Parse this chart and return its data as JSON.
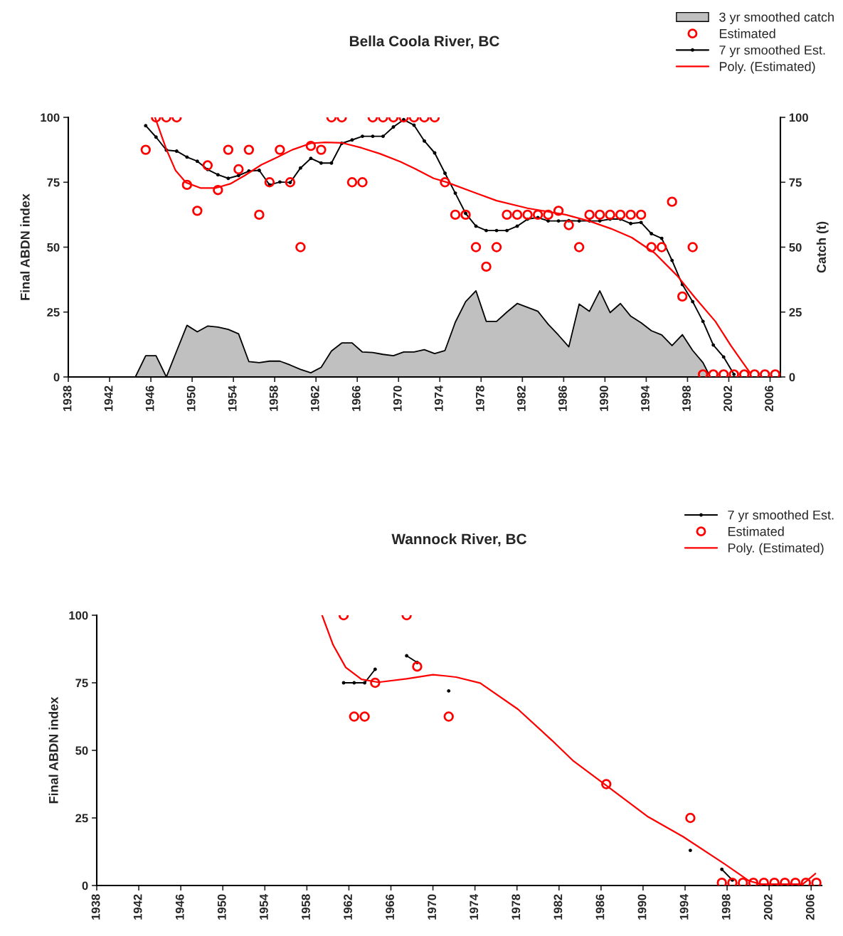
{
  "chart_data": [
    {
      "type": "line",
      "title": "Bella Coola River, BC",
      "ylabel": "Final ABDN index",
      "y2label": "Catch (t)",
      "xlim": [
        1938,
        2007
      ],
      "xticks": [
        1938,
        1942,
        1946,
        1950,
        1954,
        1958,
        1962,
        1966,
        1970,
        1974,
        1978,
        1982,
        1986,
        1990,
        1994,
        1998,
        2002,
        2006
      ],
      "ylim": [
        0,
        100
      ],
      "yticks": [
        0,
        25,
        50,
        75,
        100
      ],
      "y2lim": [
        0,
        100
      ],
      "y2ticks": [
        0,
        25,
        50,
        75,
        100
      ],
      "grid": false,
      "legend": "top right",
      "series": [
        {
          "name": "3 yr smoothed catch",
          "type": "area",
          "axis": "y2",
          "color": "#c0c0c0",
          "x": [
            1938.5,
            1939.5,
            1940.5,
            1941.5,
            1942.5,
            1943.5,
            1944.5,
            1945.5,
            1946.5,
            1947.5,
            1948.5,
            1949.5,
            1950.5,
            1951.5,
            1952.5,
            1953.5,
            1954.5,
            1955.5,
            1956.5,
            1957.5,
            1958.5,
            1959.5,
            1960.5,
            1961.5,
            1962.5,
            1963.5,
            1964.5,
            1965.5,
            1966.5,
            1967.5,
            1968.5,
            1969.5,
            1970.5,
            1971.5,
            1972.5,
            1973.5,
            1974.5,
            1975.5,
            1976.5,
            1977.5,
            1978.5,
            1979.5,
            1980.5,
            1981.5,
            1982.5,
            1983.5,
            1984.5,
            1985.5,
            1986.5,
            1987.5,
            1988.5,
            1989.5,
            1990.5,
            1991.5,
            1992.5,
            1993.5,
            1994.5,
            1995.5,
            1996.5,
            1997.5,
            1998.5,
            1999.5,
            2000.2
          ],
          "values": [
            0,
            0,
            0,
            0,
            0,
            0,
            0,
            8.2,
            8.2,
            0,
            10,
            19.9,
            17.4,
            19.6,
            19.2,
            18.3,
            16.6,
            5.9,
            5.5,
            6.1,
            6.1,
            4.6,
            2.9,
            1.6,
            3.7,
            10,
            13.1,
            13.1,
            9.6,
            9.4,
            8.7,
            8.2,
            9.6,
            9.6,
            10.5,
            9,
            10.2,
            21.1,
            29,
            33.2,
            21.4,
            21.4,
            25,
            28.3,
            26.8,
            25.3,
            20.3,
            16.1,
            11.6,
            28.1,
            25.3,
            33.2,
            24.8,
            28.3,
            23.4,
            20.9,
            17.8,
            16.2,
            12.1,
            16.3,
            10.2,
            5.5,
            0
          ]
        },
        {
          "name": "Estimated",
          "type": "scatter",
          "marker": "circle",
          "color": "#ff0000",
          "x": [
            1945.5,
            1946.5,
            1947.5,
            1948.5,
            1949.5,
            1950.5,
            1951.5,
            1952.5,
            1953.5,
            1954.5,
            1955.5,
            1956.5,
            1957.5,
            1958.5,
            1959.5,
            1960.5,
            1961.5,
            1962.5,
            1963.5,
            1964.5,
            1965.5,
            1966.5,
            1967.5,
            1968.5,
            1969.5,
            1970.5,
            1971.5,
            1972.5,
            1973.5,
            1974.5,
            1975.5,
            1976.5,
            1977.5,
            1978.5,
            1979.5,
            1980.5,
            1981.5,
            1982.5,
            1983.5,
            1984.5,
            1985.5,
            1986.5,
            1987.5,
            1988.5,
            1989.5,
            1990.5,
            1991.5,
            1992.5,
            1993.5,
            1994.5,
            1995.5,
            1996.5,
            1997.5,
            1998.5,
            1999.5,
            2000.5,
            2001.5,
            2002.5,
            2003.5,
            2004.5,
            2005.5,
            2006.5
          ],
          "values": [
            87.5,
            100,
            100,
            100,
            74,
            64,
            81.5,
            72,
            87.5,
            80,
            87.5,
            62.5,
            75,
            87.5,
            75,
            50,
            89,
            87.5,
            100,
            100,
            75,
            75,
            100,
            100,
            100,
            100,
            100,
            100,
            100,
            75,
            62.5,
            62.5,
            50,
            42.5,
            50,
            62.5,
            62.5,
            62.5,
            62.5,
            62.5,
            64,
            58.5,
            50,
            62.5,
            62.5,
            62.5,
            62.5,
            62.5,
            62.5,
            50,
            50,
            67.5,
            31,
            50,
            1,
            1,
            1,
            1,
            1,
            1,
            1,
            1
          ]
        },
        {
          "name": "7 yr smoothed Est.",
          "marker": "circle",
          "color": "#000000",
          "x": [
            1945.5,
            1946.5,
            1947.5,
            1948.5,
            1949.5,
            1950.5,
            1951.5,
            1952.5,
            1953.5,
            1954.5,
            1955.5,
            1956.5,
            1957.5,
            1958.5,
            1959.5,
            1960.5,
            1961.5,
            1962.5,
            1963.5,
            1964.5,
            1965.5,
            1966.5,
            1967.5,
            1968.5,
            1969.5,
            1970.5,
            1971.5,
            1972.5,
            1973.5,
            1974.5,
            1975.5,
            1976.5,
            1977.5,
            1978.5,
            1979.5,
            1980.5,
            1981.5,
            1982.5,
            1983.5,
            1984.5,
            1985.5,
            1986.5,
            1987.5,
            1988.5,
            1989.5,
            1990.5,
            1991.5,
            1992.5,
            1993.5,
            1994.5,
            1995.5,
            1996.5,
            1997.5,
            1998.5,
            1999.5,
            2000.5,
            2001.5,
            2002.5
          ],
          "values": [
            96.8,
            92.4,
            87.4,
            87,
            84.7,
            83.1,
            79.9,
            77.9,
            76.5,
            77.6,
            79.3,
            79.6,
            74,
            75.1,
            74.9,
            80.5,
            84.2,
            82.4,
            82.4,
            90,
            91.3,
            92.7,
            92.7,
            92.7,
            96.3,
            99.1,
            97,
            90.9,
            86.3,
            78.5,
            70.8,
            63,
            58.1,
            56.4,
            56.4,
            56.4,
            58.1,
            60.8,
            61.4,
            60.1,
            60.1,
            60.2,
            60.1,
            60.1,
            60.1,
            60.8,
            60.8,
            59.1,
            59.5,
            55.2,
            53.4,
            44.9,
            35.6,
            29,
            21.4,
            12.3,
            7.7,
            1
          ]
        },
        {
          "name": "Poly. (Estimated)",
          "color": "#ff0000",
          "x": [
            1946.4,
            1947.5,
            1948.4,
            1949.4,
            1950.8,
            1952.3,
            1953.7,
            1955.1,
            1956.7,
            1958.3,
            1959.7,
            1961.5,
            1962.9,
            1964.5,
            1966.3,
            1968.2,
            1970.2,
            1971.6,
            1973.4,
            1974.6,
            1977.5,
            1979.5,
            1982.5,
            1986.2,
            1988.6,
            1990.6,
            1992.6,
            1994.8,
            1997,
            1998.7,
            2000.7,
            2002.2,
            2003.4,
            2004.1
          ],
          "values": [
            100,
            87.7,
            79.5,
            74.9,
            72.8,
            72.8,
            74.4,
            77.6,
            81.7,
            84.7,
            87.5,
            90,
            90.4,
            90.2,
            88.4,
            86,
            82.9,
            80.2,
            76.5,
            75.1,
            70.8,
            67.9,
            65,
            62.5,
            59.9,
            57.1,
            53.7,
            47.8,
            39,
            30.7,
            21.4,
            12.1,
            5.3,
            1.4
          ]
        }
      ]
    },
    {
      "type": "line",
      "title": "Wannock River, BC",
      "ylabel": "Final ABDN index",
      "xlim": [
        1938,
        2007
      ],
      "xticks": [
        1938,
        1942,
        1946,
        1950,
        1954,
        1958,
        1962,
        1966,
        1970,
        1974,
        1978,
        1982,
        1986,
        1990,
        1994,
        1998,
        2002,
        2006
      ],
      "ylim": [
        0,
        100
      ],
      "yticks": [
        0,
        25,
        50,
        75,
        100
      ],
      "grid": false,
      "legend": "top right",
      "series": [
        {
          "name": "7 yr smoothed Est.",
          "marker": "circle",
          "color": "#000000",
          "x": [
            1961.5,
            1962.5,
            1963.5,
            1964.5,
            1965.5,
            1967.5,
            1968.5,
            1969.5,
            1971.5,
            1972.5,
            1994.5,
            1995.5,
            1997.5,
            1998.5
          ],
          "values": [
            75,
            75,
            75,
            80,
            null,
            85,
            82.5,
            null,
            72,
            null,
            13,
            null,
            6,
            2
          ]
        },
        {
          "name": "Estimated",
          "type": "scatter",
          "marker": "circle",
          "color": "#ff0000",
          "x": [
            1961.5,
            1962.5,
            1963.5,
            1964.5,
            1967.5,
            1968.5,
            1971.5,
            1986.5,
            1994.5,
            1997.5,
            1998.5,
            1999.5,
            2000.5,
            2001.5,
            2002.5,
            2003.5,
            2004.5,
            2005.5,
            2006.5
          ],
          "values": [
            100,
            62.5,
            62.5,
            75,
            100,
            81,
            62.5,
            37.5,
            25,
            1,
            1,
            1,
            1,
            1,
            1,
            1,
            1,
            1,
            1
          ]
        },
        {
          "name": "Poly. (Estimated)",
          "color": "#ff0000",
          "x": [
            1959.45,
            1960.5,
            1961.7,
            1963.2,
            1964.8,
            1967.5,
            1970,
            1971.3,
            1972.2,
            1974.5,
            1978.1,
            1981.3,
            1983.3,
            1986.5,
            1990.4,
            1993.8,
            1997.6,
            2000.1,
            2001.2,
            2005.2,
            2006.4
          ],
          "values": [
            100,
            89,
            80.7,
            76.3,
            75.2,
            76.5,
            78,
            77.5,
            77.1,
            74.9,
            65.2,
            53.8,
            46.3,
            37,
            25.6,
            18.1,
            8.4,
            1.7,
            0.5,
            0.5,
            4.4
          ]
        }
      ]
    }
  ]
}
